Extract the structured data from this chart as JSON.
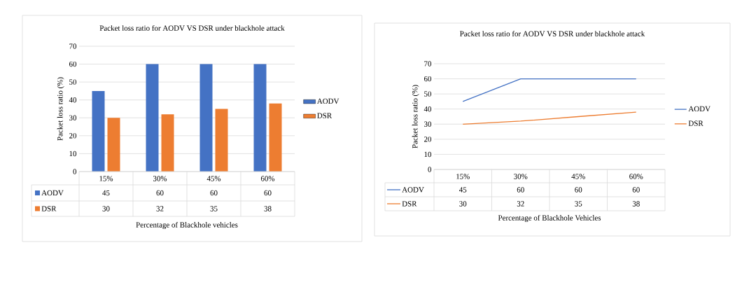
{
  "chart_data": [
    {
      "type": "bar",
      "title": "Packet loss ratio for AODV VS DSR under blackhole attack",
      "xlabel": "Percentage of Blackhole vehicles",
      "ylabel": "Packet loss ratio (%)",
      "categories": [
        "15%",
        "30%",
        "45%",
        "60%"
      ],
      "series": [
        {
          "name": "AODV",
          "color": "#4472c4",
          "values": [
            45,
            60,
            60,
            60
          ]
        },
        {
          "name": "DSR",
          "color": "#ed7d31",
          "values": [
            30,
            32,
            35,
            38
          ]
        }
      ],
      "ylim": [
        0,
        70
      ],
      "yticks": [
        0,
        10,
        20,
        30,
        40,
        50,
        60,
        70
      ],
      "grid": "y",
      "legend": "right",
      "data_labels": true
    },
    {
      "type": "line",
      "title": "Packet loss ratio for AODV VS DSR under blackhole attack",
      "xlabel": "Percentage of Blackhole Vehicles",
      "ylabel": "Packet loss ratio (%)",
      "categories": [
        "15%",
        "30%",
        "45%",
        "60%"
      ],
      "series": [
        {
          "name": "AODV",
          "color": "#4472c4",
          "values": [
            45,
            60,
            60,
            60
          ]
        },
        {
          "name": "DSR",
          "color": "#ed7d31",
          "values": [
            30,
            32,
            35,
            38
          ]
        }
      ],
      "ylim": [
        0,
        70
      ],
      "yticks": [
        0,
        10,
        20,
        30,
        40,
        50,
        60,
        70
      ],
      "grid": "y",
      "legend": "right",
      "data_labels": true
    }
  ]
}
